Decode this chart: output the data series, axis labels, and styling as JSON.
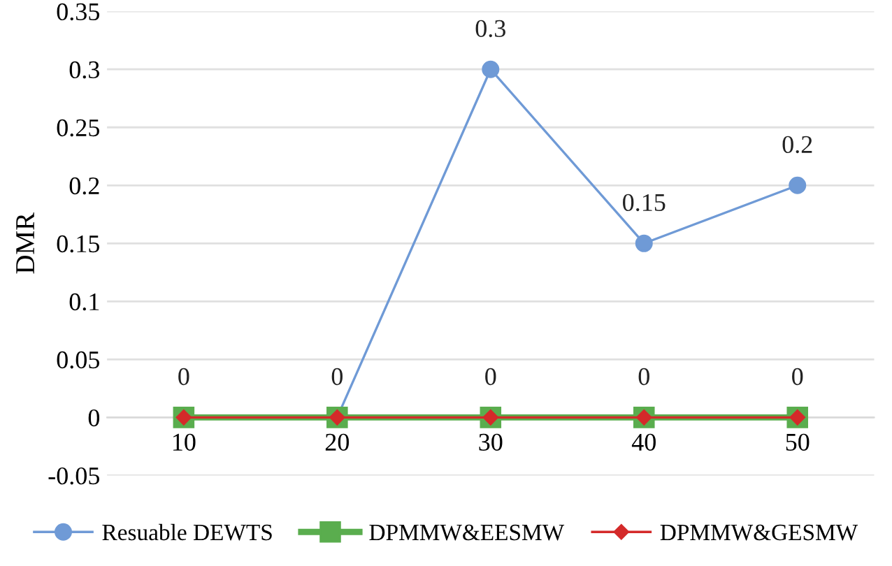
{
  "chart_data": {
    "type": "line",
    "ylabel": "DMR",
    "categories": [
      "10",
      "20",
      "30",
      "40",
      "50"
    ],
    "series": [
      {
        "name": "Resuable DEWTS",
        "color": "#6f9ad6",
        "marker": "circle",
        "values": [
          0,
          0,
          0.3,
          0.15,
          0.2
        ],
        "value_labels": [
          null,
          null,
          "0.3",
          "0.15",
          "0.2"
        ]
      },
      {
        "name": "DPMMW&EESMW",
        "color": "#5aad4e",
        "marker": "square",
        "values": [
          0,
          0,
          0,
          0,
          0
        ]
      },
      {
        "name": "DPMMW&GESMW",
        "color": "#d42a2a",
        "marker": "diamond",
        "values": [
          0,
          0,
          0,
          0,
          0
        ],
        "value_labels": [
          "0",
          "0",
          "0",
          "0",
          "0"
        ]
      }
    ],
    "ylim": [
      -0.05,
      0.35
    ],
    "yticks": [
      -0.05,
      0,
      0.05,
      0.1,
      0.15,
      0.2,
      0.25,
      0.3,
      0.35
    ],
    "grid": "y",
    "legend": "bottom",
    "line_style": "solid"
  }
}
